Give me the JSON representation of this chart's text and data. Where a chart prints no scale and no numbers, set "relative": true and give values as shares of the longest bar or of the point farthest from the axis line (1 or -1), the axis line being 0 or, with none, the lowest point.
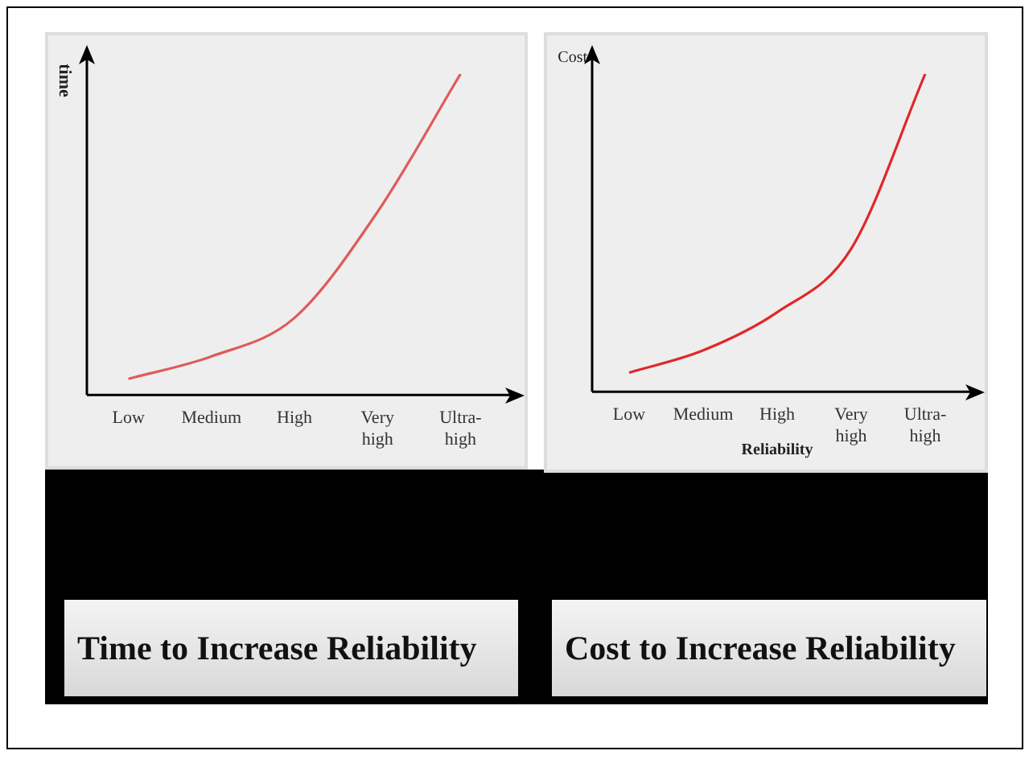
{
  "chart_data": [
    {
      "type": "line",
      "title": "Time to Increase Reliability",
      "ylabel": "time",
      "categories": [
        "Low",
        "Medium",
        "High",
        "Very high",
        "Ultra-high"
      ],
      "series": [
        {
          "color": "#e05a5a",
          "values": [
            0.05,
            0.12,
            0.24,
            0.57,
            1
          ]
        }
      ],
      "relative": true,
      "grid": false,
      "legend": false,
      "marker": "none",
      "tick_labels": "x"
    },
    {
      "type": "line",
      "title": "Cost to Increase Reliability",
      "ylabel": "Cost",
      "xlabel": "Reliability",
      "categories": [
        "Low",
        "Medium",
        "High",
        "Very high",
        "Ultra-high"
      ],
      "series": [
        {
          "color": "#e02828",
          "values": [
            0.06,
            0.13,
            0.25,
            0.45,
            1
          ]
        }
      ],
      "relative": true,
      "grid": false,
      "legend": false,
      "marker": "none",
      "tick_labels": "x"
    }
  ]
}
